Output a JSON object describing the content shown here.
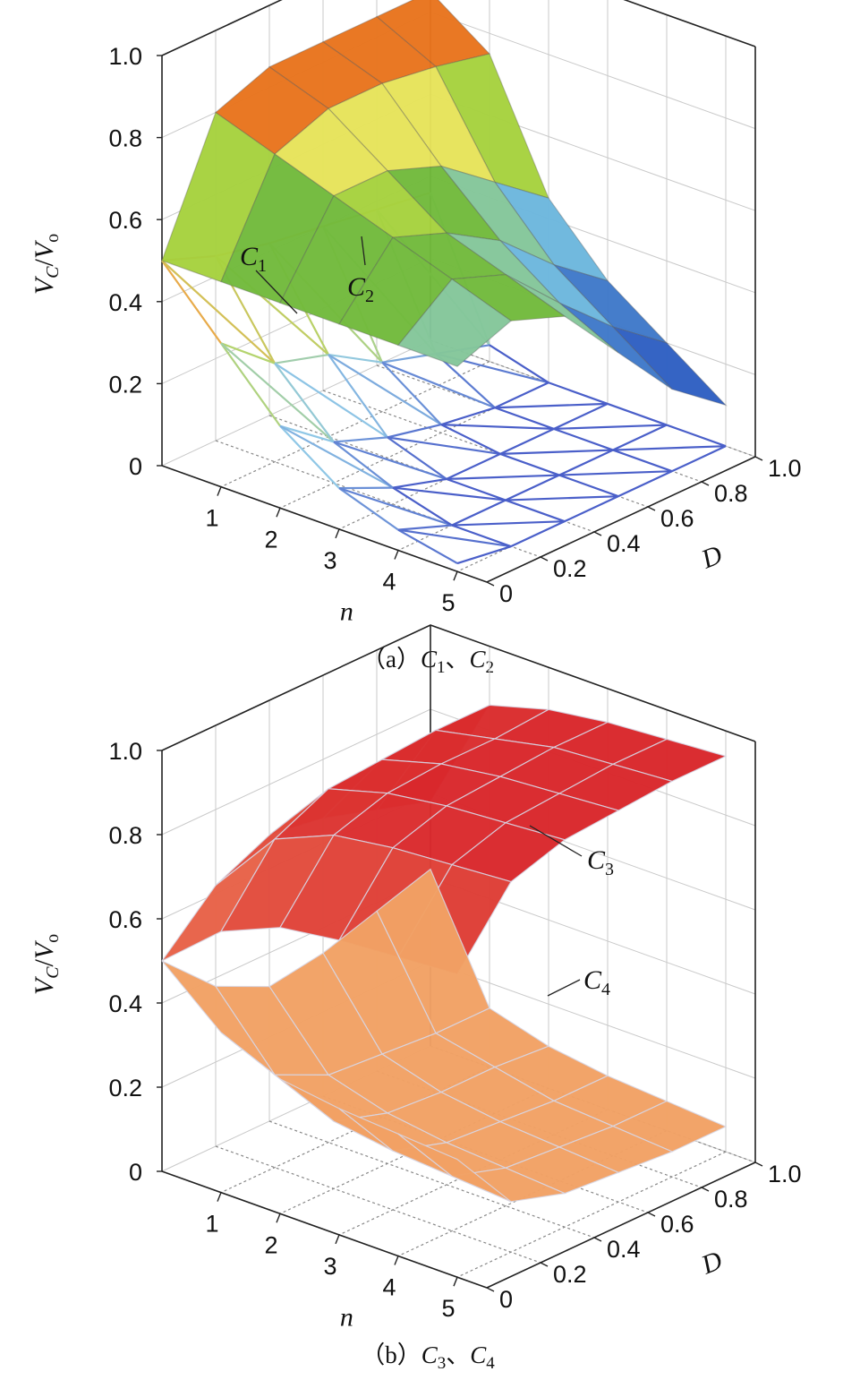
{
  "chart_data": [
    {
      "type": "surface3d",
      "panel_caption": "（a）C1、C2",
      "caption_parts": {
        "pre": "（a）",
        "s1": "C",
        "s1sub": "1",
        "sep": "、",
        "s2": "C",
        "s2sub": "2"
      },
      "ylabel": "V_C/V_o",
      "ylabel_parts": {
        "V1": "V",
        "sub1": "C",
        "slash": "/",
        "V2": "V",
        "sub2": "o"
      },
      "xlabel": "n",
      "dlabel": "D",
      "x_ticks": [
        "1",
        "2",
        "3",
        "4",
        "5"
      ],
      "d_ticks": [
        "0",
        "0.2",
        "0.4",
        "0.6",
        "0.8",
        "1.0"
      ],
      "z_ticks": [
        "0",
        "0.2",
        "0.4",
        "0.6",
        "0.8",
        "1.0"
      ],
      "xlim": [
        0,
        5.5
      ],
      "dlim": [
        0,
        1.0
      ],
      "zlim": [
        0,
        1.0
      ],
      "n_values": [
        0,
        1,
        2,
        3,
        4,
        5
      ],
      "D_values": [
        0,
        0.2,
        0.4,
        0.6,
        0.8,
        1.0
      ],
      "series": [
        {
          "name": "C1",
          "label_main": "C",
          "label_sub": "1",
          "style": "wireframe-gradient",
          "z": [
            [
              0.5,
              0.45,
              0.42,
              0.4,
              0.38,
              0.36
            ],
            [
              0.35,
              0.24,
              0.2,
              0.12,
              0.08,
              0.04
            ],
            [
              0.2,
              0.1,
              0.05,
              0.02,
              0.0,
              0.0
            ],
            [
              0.1,
              0.04,
              0.0,
              0.0,
              0.0,
              0.0
            ],
            [
              0.05,
              0.0,
              0.0,
              0.0,
              0.0,
              0.0
            ],
            [
              0.02,
              0.0,
              0.0,
              0.0,
              0.0,
              0.0
            ]
          ]
        },
        {
          "name": "C2",
          "label_main": "C",
          "label_sub": "2",
          "style": "surface-banded",
          "z": [
            [
              0.5,
              0.8,
              0.85,
              0.85,
              0.85,
              0.85
            ],
            [
              0.5,
              0.75,
              0.8,
              0.8,
              0.78,
              0.75
            ],
            [
              0.5,
              0.7,
              0.7,
              0.65,
              0.55,
              0.45
            ],
            [
              0.5,
              0.65,
              0.6,
              0.52,
              0.4,
              0.3
            ],
            [
              0.5,
              0.6,
              0.55,
              0.42,
              0.3,
              0.2
            ],
            [
              0.5,
              0.55,
              0.5,
              0.35,
              0.2,
              0.1
            ]
          ]
        }
      ]
    },
    {
      "type": "surface3d",
      "panel_caption": "（b）C3、C4",
      "caption_parts": {
        "pre": "（b）",
        "s1": "C",
        "s1sub": "3",
        "sep": "、",
        "s2": "C",
        "s2sub": "4"
      },
      "ylabel": "V_C/V_o",
      "ylabel_parts": {
        "V1": "V",
        "sub1": "C",
        "slash": "/",
        "V2": "V",
        "sub2": "o"
      },
      "xlabel": "n",
      "dlabel": "D",
      "x_ticks": [
        "1",
        "2",
        "3",
        "4",
        "5"
      ],
      "d_ticks": [
        "0",
        "0.2",
        "0.4",
        "0.6",
        "0.8",
        "1.0"
      ],
      "z_ticks": [
        "0",
        "0.2",
        "0.4",
        "0.6",
        "0.8",
        "1.0"
      ],
      "xlim": [
        0,
        5.5
      ],
      "dlim": [
        0,
        1.0
      ],
      "zlim": [
        0,
        1.0
      ],
      "n_values": [
        0,
        1,
        2,
        3,
        4,
        5
      ],
      "D_values": [
        0,
        0.2,
        0.4,
        0.6,
        0.8,
        1.0
      ],
      "series": [
        {
          "name": "C3",
          "label_main": "C",
          "label_sub": "3",
          "style": "surface-red",
          "z": [
            [
              0.5,
              0.62,
              0.68,
              0.66,
              0.62,
              0.58
            ],
            [
              0.62,
              0.78,
              0.84,
              0.85,
              0.86,
              0.86
            ],
            [
              0.68,
              0.84,
              0.88,
              0.89,
              0.89,
              0.9
            ],
            [
              0.7,
              0.86,
              0.9,
              0.91,
              0.92,
              0.92
            ],
            [
              0.71,
              0.87,
              0.91,
              0.92,
              0.93,
              0.93
            ],
            [
              0.72,
              0.88,
              0.92,
              0.93,
              0.94,
              0.94
            ]
          ]
        },
        {
          "name": "C4",
          "label_main": "C",
          "label_sub": "4",
          "style": "surface-orange",
          "z": [
            [
              0.5,
              0.38,
              0.32,
              0.34,
              0.38,
              0.42
            ],
            [
              0.38,
              0.22,
              0.16,
              0.15,
              0.14,
              0.14
            ],
            [
              0.32,
              0.16,
              0.12,
              0.11,
              0.11,
              0.1
            ],
            [
              0.3,
              0.14,
              0.1,
              0.09,
              0.08,
              0.08
            ],
            [
              0.29,
              0.13,
              0.09,
              0.08,
              0.07,
              0.07
            ],
            [
              0.28,
              0.12,
              0.08,
              0.07,
              0.06,
              0.06
            ]
          ]
        }
      ]
    }
  ]
}
